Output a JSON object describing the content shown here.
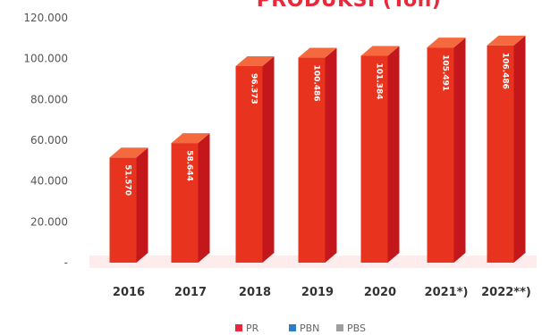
{
  "chart_data": {
    "type": "bar",
    "title": "PRODUKSI (Ton)",
    "categories": [
      "2016",
      "2017",
      "2018",
      "2019",
      "2020",
      "2021*)",
      "2022**)"
    ],
    "series": [
      {
        "name": "PR",
        "values": [
          51570,
          58644,
          96373,
          100486,
          101384,
          105491,
          106486
        ],
        "value_labels": [
          "51.570",
          "58.644",
          "96.373",
          "100.486",
          "101.384",
          "105.491",
          "106.486"
        ]
      }
    ],
    "y_ticks": [
      "120.000",
      "100.000",
      "80.000",
      "60.000",
      "40.000",
      "20.000",
      "-"
    ],
    "ylim": [
      0,
      120000
    ],
    "legend": [
      {
        "label": "PR",
        "color": "#e8293b"
      },
      {
        "label": "PBN",
        "color": "#2f7ec1"
      },
      {
        "label": "PBS",
        "color": "#9e9e9e"
      }
    ],
    "legend_position": "bottom",
    "grid": false,
    "colors": {
      "bar_front": "#e8341e",
      "bar_side": "#c3171b",
      "bar_top": "#f46a3e",
      "title": "#e8293b",
      "axis_text": "#555555"
    }
  }
}
